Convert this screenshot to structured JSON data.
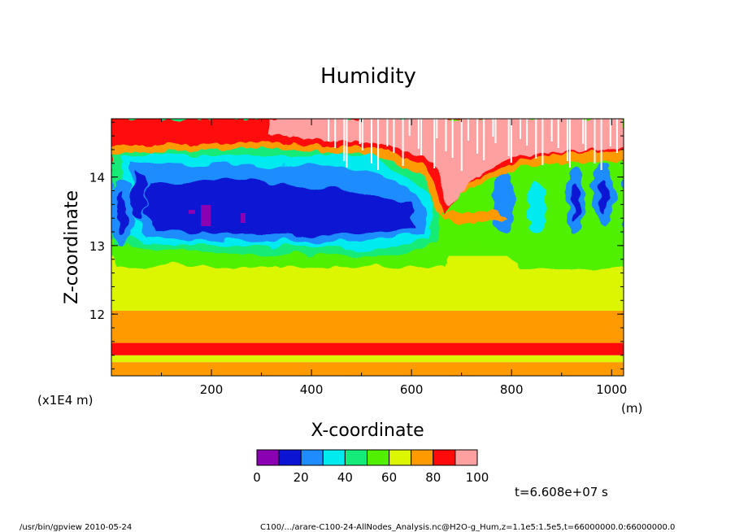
{
  "chart_data": {
    "type": "heatmap",
    "title": "Humidity",
    "xlabel": "X-coordinate",
    "ylabel": "Z-coordinate",
    "x_unit": "(m)",
    "y_scale_label": "(x1E4 m)",
    "xlim": [
      0,
      1024
    ],
    "ylim": [
      11.1,
      14.85
    ],
    "x_ticks": [
      "200",
      "400",
      "600",
      "800",
      "1000"
    ],
    "x_tick_values": [
      200,
      400,
      600,
      800,
      1000
    ],
    "y_ticks": [
      "12",
      "13",
      "14"
    ],
    "y_tick_values": [
      12,
      13,
      14
    ],
    "colorbar": {
      "levels": [
        0,
        10,
        20,
        30,
        40,
        50,
        60,
        70,
        80,
        90,
        100
      ],
      "tick_labels": [
        "0",
        "20",
        "40",
        "60",
        "80",
        "100"
      ],
      "colors": [
        "#8c00b4",
        "#0a14d2",
        "#1e8cff",
        "#00ebf0",
        "#14eb78",
        "#50f000",
        "#dcf500",
        "#ff9b00",
        "#ff0a0a",
        "#ffa0a0"
      ]
    },
    "layers_by_height": [
      {
        "z_from": 11.1,
        "z_to": 11.3,
        "humidity": 75
      },
      {
        "z_from": 11.3,
        "z_to": 11.4,
        "humidity": 65
      },
      {
        "z_from": 11.4,
        "z_to": 11.58,
        "humidity": 85
      },
      {
        "z_from": 11.58,
        "z_to": 12.05,
        "humidity": 75
      },
      {
        "z_from": 12.05,
        "z_to": 12.85,
        "humidity": 65
      },
      {
        "z_from": 12.85,
        "z_to": 13.1,
        "humidity": 55
      },
      {
        "z_from": 13.1,
        "z_to": 14.1,
        "humidity": 25
      },
      {
        "z_from": 14.1,
        "z_to": 14.85,
        "humidity": 88
      }
    ],
    "time_label": "t=6.608e+07 s"
  },
  "footer": {
    "left": "/usr/bin/gpview   2010-05-24",
    "right": "C100/.../arare-C100-24-AllNodes_Analysis.nc@H2O-g_Hum,z=1.1e5:1.5e5,t=66000000.0:66000000.0"
  }
}
